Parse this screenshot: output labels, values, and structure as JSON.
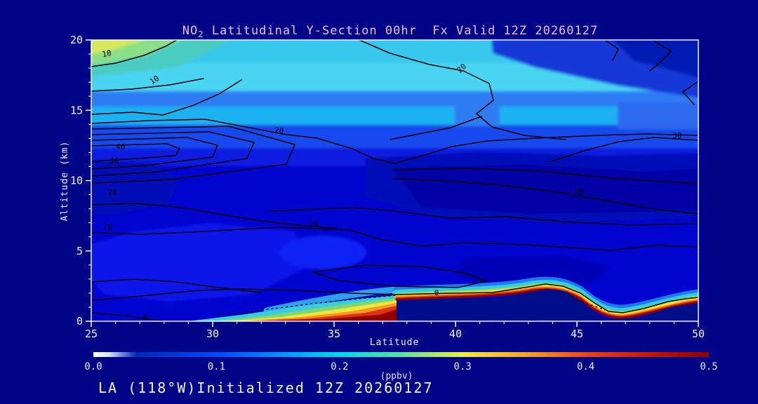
{
  "title": {
    "prefix": "NO",
    "sub": "2",
    "rest": " Latitudinal Y-Section 00hr  Fx Valid 12Z 20260127"
  },
  "footer_text": "LA (118°W)Initialized 12Z 20260127",
  "chart_data": {
    "type": "heatmap",
    "subtype": "latitude-altitude filled-contour cross-section with overlaid line contours",
    "species": "NO2",
    "forecast_hour": "00hr",
    "valid_label": "Fx Valid 12Z 20260127",
    "initialized_label": "Initialized 12Z 20260127",
    "slice_location": "LA (118°W)",
    "title": "NO2 Latitudinal Y-Section 00hr  Fx Valid 12Z 20260127",
    "xlabel": "Latitude",
    "ylabel": "Altitude (km)",
    "xlim": [
      25,
      50
    ],
    "ylim": [
      0,
      20
    ],
    "x_major_ticks": [
      25,
      30,
      35,
      40,
      45,
      50
    ],
    "x_tick_labels": [
      "25",
      "30",
      "35",
      "40",
      "45",
      "50"
    ],
    "x_minor_step": 1,
    "y_major_ticks": [
      0,
      5,
      10,
      15,
      20
    ],
    "y_tick_labels": [
      "0",
      "5",
      "10",
      "15",
      "20"
    ],
    "y_minor_step": 1,
    "grid": false,
    "colorbar": {
      "units": "(ppbv)",
      "min": 0.0,
      "max": 0.5,
      "tick_values": [
        0.0,
        0.1,
        0.2,
        0.3,
        0.4,
        0.5
      ],
      "tick_labels": [
        "0.0",
        "0.1",
        "0.2",
        "0.3",
        "0.4",
        "0.5"
      ],
      "gradient": [
        {
          "v": 0.0,
          "c": "#ffffff"
        },
        {
          "v": 0.012,
          "c": "#dce8ff"
        },
        {
          "v": 0.035,
          "c": "#0028b8"
        },
        {
          "v": 0.1,
          "c": "#0048ff"
        },
        {
          "v": 0.15,
          "c": "#0090ff"
        },
        {
          "v": 0.2,
          "c": "#00d8e8"
        },
        {
          "v": 0.25,
          "c": "#55e49b"
        },
        {
          "v": 0.3,
          "c": "#eeee3c"
        },
        {
          "v": 0.35,
          "c": "#f5a622"
        },
        {
          "v": 0.4,
          "c": "#ee4411"
        },
        {
          "v": 0.45,
          "c": "#c81605"
        },
        {
          "v": 0.5,
          "c": "#8b0000"
        }
      ]
    },
    "overlay_contours": {
      "levels": [
        0,
        10,
        20,
        30,
        40
      ],
      "color": "#000000",
      "labels": [
        {
          "text": "10",
          "lat": 25.66,
          "alt": 18.85,
          "rot": -12
        },
        {
          "text": "10",
          "lat": 27.66,
          "alt": 17.01,
          "rot": -35
        },
        {
          "text": "20",
          "lat": 32.72,
          "alt": 13.37,
          "rot": 8
        },
        {
          "text": "20",
          "lat": 40.32,
          "alt": 17.86,
          "rot": -42
        },
        {
          "text": "40",
          "lat": 26.21,
          "alt": 12.22,
          "rot": 0
        },
        {
          "text": "30",
          "lat": 25.95,
          "alt": 11.22,
          "rot": 0
        },
        {
          "text": "20",
          "lat": 25.87,
          "alt": 8.98,
          "rot": 0
        },
        {
          "text": "10",
          "lat": 25.66,
          "alt": 6.53,
          "rot": 5
        },
        {
          "text": "10",
          "lat": 34.16,
          "alt": 6.73,
          "rot": 0
        },
        {
          "text": "20",
          "lat": 45.09,
          "alt": 9.03,
          "rot": 10
        },
        {
          "text": "30",
          "lat": 49.13,
          "alt": 13.02,
          "rot": 0
        },
        {
          "text": "0",
          "lat": 27.17,
          "alt": 0.15,
          "rot": 20
        },
        {
          "text": "0",
          "lat": 39.22,
          "alt": 1.85,
          "rot": 0
        }
      ]
    },
    "field_features": [
      {
        "region": "surface plume core, 32-36N, below ~1 km",
        "value_ppbv": 0.5
      },
      {
        "region": "elevated thin plume layer at ~1.5-2 km, 37-50N (dips near 45-46N)",
        "value_ppbv": 0.35
      },
      {
        "region": "stratospheric maximum, 25-27N near 19-20 km (yellow-green patch)",
        "value_ppbv": 0.3
      },
      {
        "region": "upper enhanced cyan band, 17-19 km, strongest 28-42N",
        "value_ppbv": 0.2
      },
      {
        "region": "secondary cyan band, 14-15.5 km, 29-44N",
        "value_ppbv": 0.18
      },
      {
        "region": "mid-troposphere background, 2-13 km",
        "value_ppbv": 0.07
      },
      {
        "region": "darker minima 8-12 km (25-28N and 37-50N)",
        "value_ppbv": 0.05
      },
      {
        "region": "terrain-masked minimum below elevated layer, 38-50N below ~1.5 km",
        "value_ppbv": 0.01
      }
    ]
  }
}
